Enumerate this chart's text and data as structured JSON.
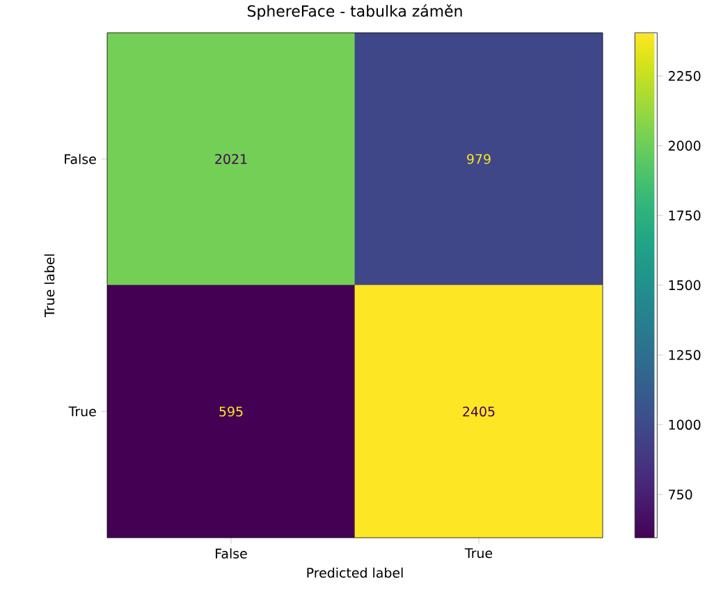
{
  "chart_data": {
    "type": "heatmap",
    "title": "SphereFace - tabulka záměn",
    "xlabel": "Predicted label",
    "ylabel": "True label",
    "categories": [
      "False",
      "True"
    ],
    "y_categories": [
      "False",
      "True"
    ],
    "cells": [
      [
        2021,
        979
      ],
      [
        595,
        2405
      ]
    ],
    "clim": [
      595,
      2405
    ],
    "cticks": [
      750,
      1000,
      1250,
      1500,
      1750,
      2000,
      2250
    ],
    "data_labels": true
  }
}
